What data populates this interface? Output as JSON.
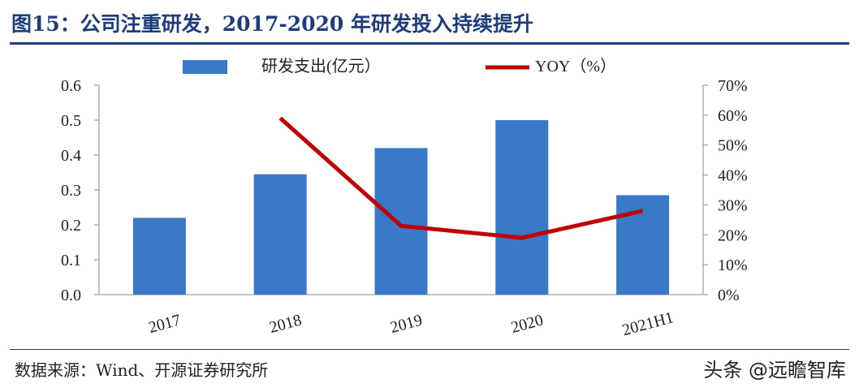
{
  "header": {
    "title": "图15：公司注重研发，2017-2020 年研发投入持续提升"
  },
  "footer": {
    "source": "数据来源：Wind、开源证券研究所",
    "watermark": "头条 @远瞻智库"
  },
  "colors": {
    "bar": "#3a78c8",
    "line": "#c00000",
    "title": "#1f3d7a"
  },
  "chart_data": {
    "type": "bar",
    "categories": [
      "2017",
      "2018",
      "2019",
      "2020",
      "2021H1"
    ],
    "series": [
      {
        "name": "研发支出(亿元）",
        "type": "bar",
        "axis": "left",
        "values": [
          0.22,
          0.345,
          0.42,
          0.5,
          0.285
        ]
      },
      {
        "name": "YOY（%）",
        "type": "line",
        "axis": "right",
        "values": [
          null,
          59,
          23,
          19,
          28
        ]
      }
    ],
    "y_left": {
      "range": [
        0,
        0.6
      ],
      "ticks": [
        "0.0",
        "0.1",
        "0.2",
        "0.3",
        "0.4",
        "0.5",
        "0.6"
      ]
    },
    "y_right": {
      "range": [
        0,
        70
      ],
      "ticks": [
        "0%",
        "10%",
        "20%",
        "30%",
        "40%",
        "50%",
        "60%",
        "70%"
      ]
    },
    "legend": "top",
    "grid": false
  }
}
